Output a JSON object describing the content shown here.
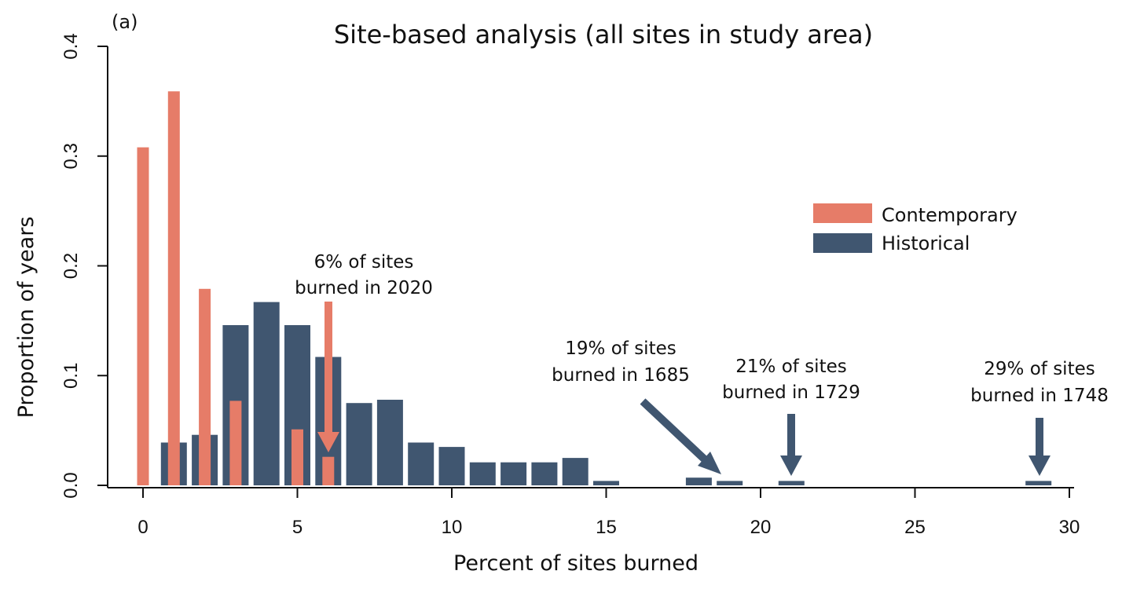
{
  "figure": {
    "panel_label": "(a)",
    "title": "Site-based analysis (all sites in study area)"
  },
  "chart_data": {
    "type": "bar",
    "xlabel": "Percent of sites burned",
    "ylabel": "Proportion of years",
    "xlim": [
      -1,
      30.5
    ],
    "ylim": [
      0,
      0.4
    ],
    "xticks": [
      0,
      5,
      10,
      15,
      20,
      25,
      30
    ],
    "yticks": [
      0.0,
      0.1,
      0.2,
      0.3,
      0.4
    ],
    "xtick_labels": [
      "0",
      "5",
      "10",
      "15",
      "20",
      "25",
      "30"
    ],
    "ytick_labels": [
      "0.0",
      "0.1",
      "0.2",
      "0.3",
      "0.4"
    ],
    "grid": false,
    "legend": {
      "position": "right",
      "entries": [
        "Contemporary",
        "Historical"
      ]
    },
    "series": [
      {
        "name": "Historical",
        "color": "#405670",
        "x": [
          1,
          2,
          3,
          4,
          5,
          6,
          7,
          8,
          9,
          10,
          11,
          12,
          13,
          14,
          15,
          18,
          19,
          21,
          29
        ],
        "values": [
          0.039,
          0.046,
          0.146,
          0.167,
          0.146,
          0.117,
          0.075,
          0.078,
          0.039,
          0.035,
          0.021,
          0.021,
          0.021,
          0.025,
          0.004,
          0.007,
          0.004,
          0.004,
          0.004
        ]
      },
      {
        "name": "Contemporary",
        "color": "#E67C68",
        "x": [
          0,
          1,
          2,
          3,
          5,
          6
        ],
        "values": [
          0.308,
          0.359,
          0.179,
          0.077,
          0.051,
          0.026
        ]
      }
    ],
    "annotations": [
      {
        "lines": [
          "6% of sites",
          "burned in 2020"
        ],
        "x": 6,
        "y": 0.026,
        "color": "#E67C68"
      },
      {
        "lines": [
          "19% of sites",
          "burned in 1685"
        ],
        "x": 19,
        "y": 0.004,
        "color": "#405670"
      },
      {
        "lines": [
          "21% of sites",
          "burned in 1729"
        ],
        "x": 21,
        "y": 0.004,
        "color": "#405670"
      },
      {
        "lines": [
          "29% of sites",
          "burned in 1748"
        ],
        "x": 29,
        "y": 0.004,
        "color": "#405670"
      }
    ]
  }
}
